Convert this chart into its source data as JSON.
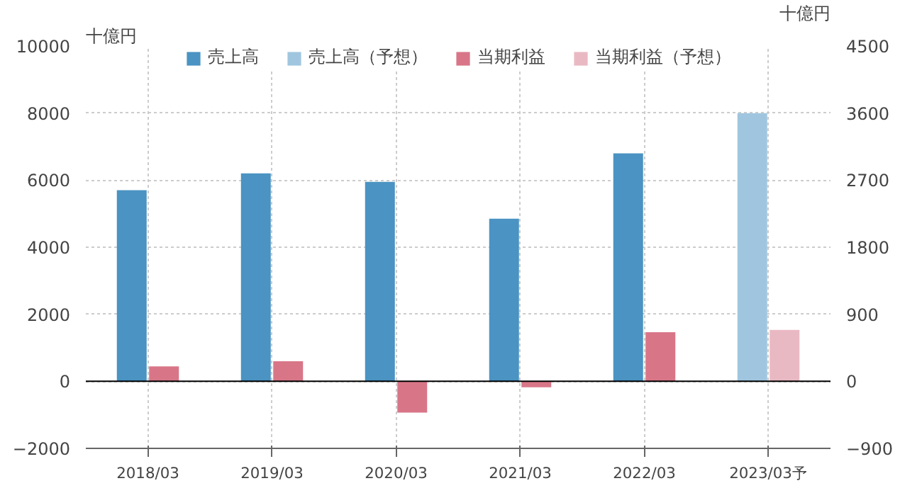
{
  "chart_data": {
    "type": "bar",
    "ylabel": "十億円",
    "y2label": "十億円",
    "categories": [
      "2018/03",
      "2019/03",
      "2020/03",
      "2021/03",
      "2022/03",
      "2023/03予"
    ],
    "series": [
      {
        "name": "売上高",
        "color": "#4a93c2",
        "values": [
          5700,
          6200,
          5950,
          4850,
          6800,
          null
        ]
      },
      {
        "name": "売上高（予想）",
        "color": "#a0c6df",
        "values": [
          null,
          null,
          null,
          null,
          null,
          8000
        ]
      },
      {
        "name": "当期利益",
        "color": "#d87688",
        "axis": "y2",
        "values": [
          200,
          270,
          -420,
          -80,
          660,
          null
        ]
      },
      {
        "name": "当期利益（予想）",
        "color": "#e9b9c3",
        "axis": "y2",
        "values": [
          null,
          null,
          null,
          null,
          null,
          690
        ]
      }
    ],
    "ylim": [
      -2000,
      10000
    ],
    "yticks": [
      -2000,
      0,
      2000,
      4000,
      6000,
      8000,
      10000
    ],
    "y2lim": [
      -900,
      4500
    ],
    "y2ticks": [
      -900,
      0,
      900,
      1800,
      2700,
      3600,
      4500
    ],
    "grid": true,
    "legend": "top"
  }
}
